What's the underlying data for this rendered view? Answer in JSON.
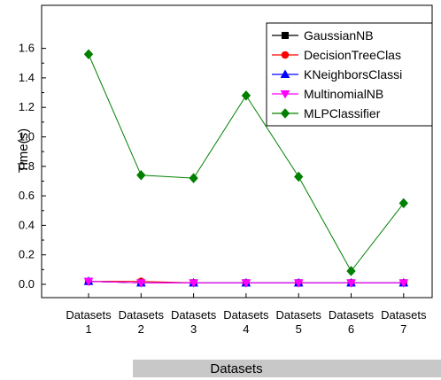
{
  "chart_data": {
    "type": "line",
    "xlabel": "Datasets",
    "ylabel": "Time(s)",
    "categories": [
      [
        "Datasets",
        "1"
      ],
      [
        "Datasets",
        "2"
      ],
      [
        "Datasets",
        "3"
      ],
      [
        "Datasets",
        "4"
      ],
      [
        "Datasets",
        "5"
      ],
      [
        "Datasets",
        "6"
      ],
      [
        "Datasets",
        "7"
      ]
    ],
    "ylim": [
      -0.1,
      1.72
    ],
    "yticks": [
      "0.0",
      "0.2",
      "0.4",
      "0.6",
      "0.8",
      "1.0",
      "1.2",
      "1.4",
      "1.6"
    ],
    "grid": false,
    "legend_position": "top-right",
    "series": [
      {
        "name": "GaussianNB",
        "color": "#000000",
        "marker": "square",
        "values": [
          0.02,
          0.01,
          0.01,
          0.01,
          0.01,
          0.01,
          0.01
        ]
      },
      {
        "name": "DecisionTreeClas",
        "color": "#ff0000",
        "marker": "circle",
        "values": [
          0.02,
          0.02,
          0.01,
          0.01,
          0.01,
          0.01,
          0.01
        ]
      },
      {
        "name": "KNeighborsClassi",
        "color": "#0000ff",
        "marker": "triangle-up",
        "values": [
          0.02,
          0.01,
          0.01,
          0.01,
          0.01,
          0.01,
          0.01
        ]
      },
      {
        "name": "MultinomialNB",
        "color": "#ff00ff",
        "marker": "triangle-down",
        "values": [
          0.02,
          0.01,
          0.01,
          0.01,
          0.01,
          0.01,
          0.01
        ]
      },
      {
        "name": "MLPClassifier",
        "color": "#008000",
        "marker": "diamond",
        "values": [
          1.56,
          0.74,
          0.72,
          1.28,
          0.73,
          0.09,
          0.55
        ]
      }
    ]
  }
}
